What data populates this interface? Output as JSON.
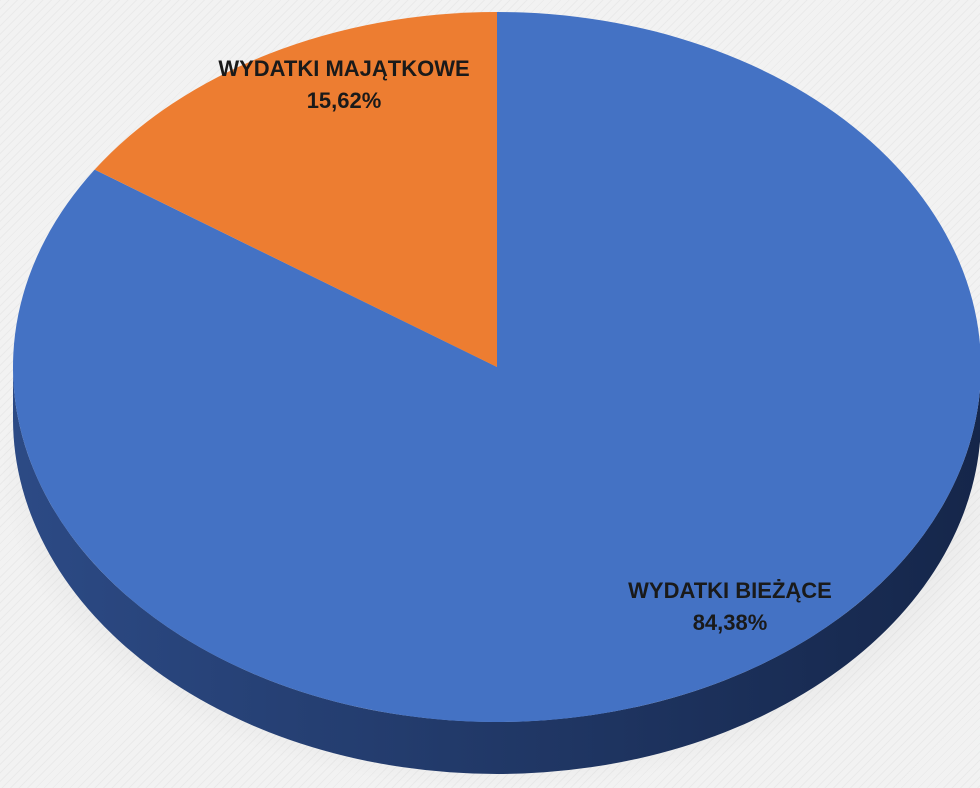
{
  "chart_data": {
    "type": "pie",
    "slices": [
      {
        "name": "WYDATKI BIEŻĄCE",
        "value": 84.38,
        "label": "84,38%",
        "color": "#4472c4",
        "side_color": "#1f3560"
      },
      {
        "name": "WYDATKI MAJĄTKOWE",
        "value": 15.62,
        "label": "15,62%",
        "color": "#ed7d31",
        "side_color": "#8a4316"
      }
    ]
  }
}
